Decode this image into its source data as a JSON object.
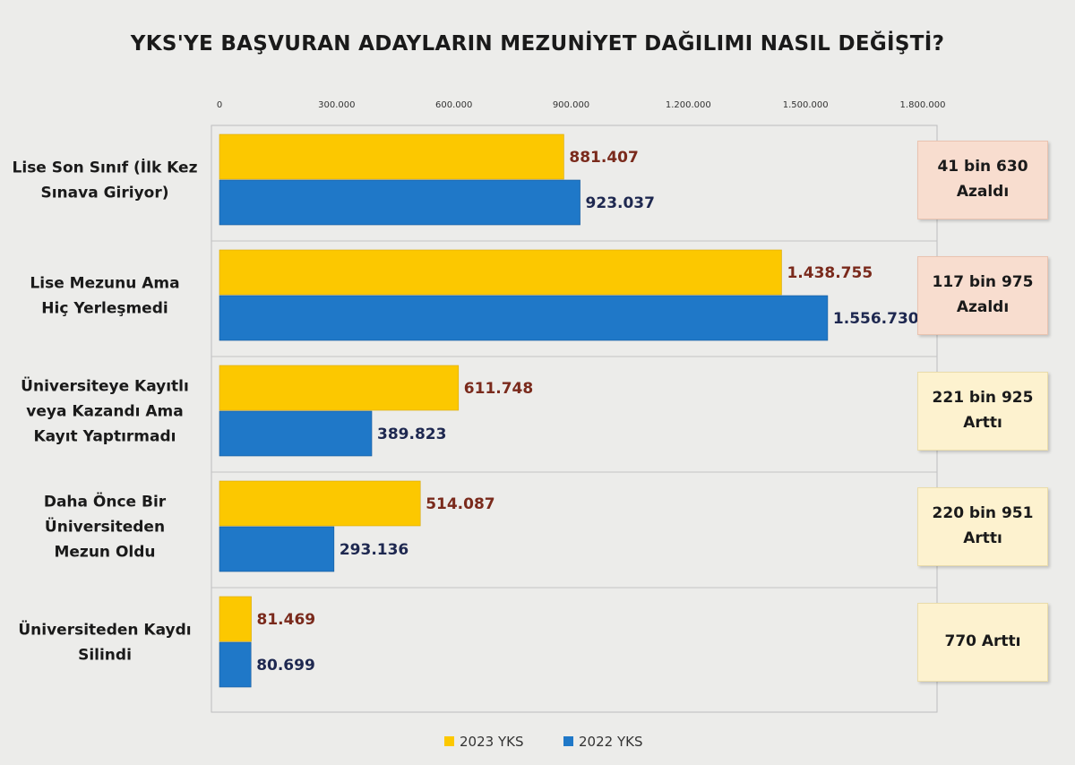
{
  "title": "YKS'YE BAŞVURAN ADAYLARIN MEZUNİYET DAĞILIMI NASIL DEĞİŞTİ?",
  "colors": {
    "series_2023": "#fcc800",
    "series_2022": "#1f78c8",
    "value_2023_text": "#7a2a1c",
    "value_2022_text": "#1e2850",
    "decrease_box": "#f8ddcf",
    "increase_box": "#fdf2cf"
  },
  "chart_data": {
    "type": "bar",
    "orientation": "horizontal",
    "title": "YKS'YE BAŞVURAN ADAYLARIN MEZUNİYET DAĞILIMI NASIL DEĞİŞTİ?",
    "categories": [
      [
        "Lise Son Sınıf (İlk Kez",
        "Sınava Giriyor)"
      ],
      [
        "Lise Mezunu Ama",
        "Hiç Yerleşmedi"
      ],
      [
        "Üniversiteye Kayıtlı",
        "veya Kazandı Ama",
        "Kayıt Yaptırmadı"
      ],
      [
        "Daha Önce Bir",
        "Üniversiteden",
        "Mezun Oldu"
      ],
      [
        "Üniversiteden Kaydı",
        "Silindi"
      ]
    ],
    "series": [
      {
        "name": "2023 YKS",
        "values": [
          881407,
          1438755,
          611748,
          514087,
          81469
        ],
        "labels": [
          "881.407",
          "1.438.755",
          "611.748",
          "514.087",
          "81.469"
        ]
      },
      {
        "name": "2022 YKS",
        "values": [
          923037,
          1556730,
          389823,
          293136,
          80699
        ],
        "labels": [
          "923.037",
          "1.556.730",
          "389.823",
          "293.136",
          "80.699"
        ]
      }
    ],
    "xlim": [
      0,
      1800000
    ],
    "x_ticks": [
      0,
      300000,
      600000,
      900000,
      1200000,
      1500000,
      1800000
    ],
    "x_tick_labels": [
      "0",
      "300.000",
      "600.000",
      "900.000",
      "1.200.000",
      "1.500.000",
      "1.800.000"
    ],
    "x_axis_position": "top",
    "grid": false,
    "legend_position": "bottom-center",
    "annotations": [
      {
        "lines": [
          "41 bin 630",
          "Azaldı"
        ],
        "kind": "decrease"
      },
      {
        "lines": [
          "117 bin 975",
          "Azaldı"
        ],
        "kind": "decrease"
      },
      {
        "lines": [
          "221 bin 925",
          "Arttı"
        ],
        "kind": "increase"
      },
      {
        "lines": [
          "220 bin 951",
          "Arttı"
        ],
        "kind": "increase"
      },
      {
        "lines": [
          "770 Arttı"
        ],
        "kind": "increase"
      }
    ]
  }
}
